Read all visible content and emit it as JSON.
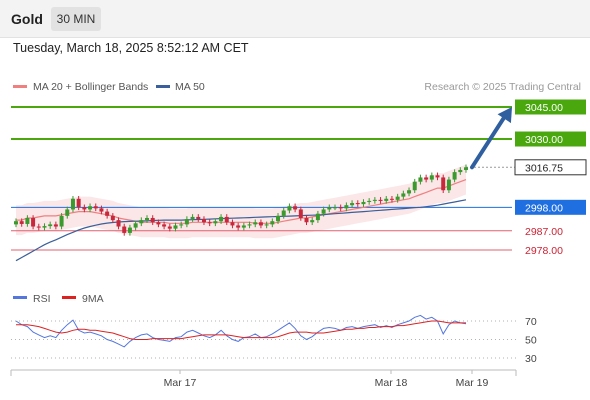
{
  "header": {
    "symbol": "Gold",
    "timeframe": "30 MIN",
    "datetime": "Tuesday, March 18, 2025 8:52:12 AM CET"
  },
  "legend": {
    "ma20": "MA 20 + Bollinger Bands",
    "ma50": "MA 50",
    "copyright": "Research © 2025 Trading Central"
  },
  "colors": {
    "candle_up": "#3a9a2e",
    "candle_down": "#c8283c",
    "ma20": "#f08080",
    "ma50": "#3a5f9a",
    "bollinger_fill": "#fbe3e6",
    "resistance": "#4aa80e",
    "support": "#e06070",
    "pivot": "#1f6fe0",
    "current": "#333333",
    "rsi": "#5577dd",
    "rsi_ma": "#dd2222"
  },
  "rsi_legend": {
    "rsi": "RSI",
    "ma": "9MA"
  },
  "chart_data": {
    "type": "candlestick",
    "x_tick_labels": [
      "Mar 17",
      "Mar 18",
      "Mar 19"
    ],
    "price_levels": [
      {
        "label": "3045.00",
        "value": 3045.0,
        "kind": "resistance"
      },
      {
        "label": "3030.00",
        "value": 3030.0,
        "kind": "resistance"
      },
      {
        "label": "3016.75",
        "value": 3016.75,
        "kind": "current"
      },
      {
        "label": "2998.00",
        "value": 2998.0,
        "kind": "pivot"
      },
      {
        "label": "2987.00",
        "value": 2987.0,
        "kind": "support"
      },
      {
        "label": "2978.00",
        "value": 2978.0,
        "kind": "support"
      }
    ],
    "target_arrow": {
      "from": 3016.75,
      "to": 3045.0
    },
    "rsi_levels": [
      70,
      50,
      30
    ],
    "candles_close": [
      2991.5,
      2990.2,
      2993.0,
      2989.0,
      2988.5,
      2989.2,
      2990.0,
      2989.0,
      2994.0,
      2997.0,
      3002.0,
      2998.0,
      2997.0,
      2998.5,
      2997.5,
      2996.0,
      2994.0,
      2992.0,
      2989.0,
      2986.0,
      2988.5,
      2990.5,
      2992.0,
      2993.0,
      2991.0,
      2990.0,
      2989.0,
      2988.0,
      2989.5,
      2990.0,
      2992.5,
      2993.5,
      2992.5,
      2991.0,
      2990.5,
      2991.5,
      2993.5,
      2991.0,
      2989.5,
      2988.5,
      2989.5,
      2990.0,
      2991.0,
      2989.5,
      2990.0,
      2991.5,
      2994.0,
      2996.5,
      2998.5,
      2997.0,
      2993.0,
      2991.0,
      2992.0,
      2995.0,
      2997.0,
      2998.0,
      2998.0,
      2997.5,
      2999.0,
      3000.0,
      2999.5,
      3000.5,
      3001.0,
      3001.5,
      3001.0,
      3002.0,
      3001.5,
      3003.0,
      3004.5,
      3006.0,
      3010.0,
      3012.0,
      3011.0,
      3013.0,
      3012.0,
      3006.0,
      3011.0,
      3014.5,
      3015.5,
      3016.75
    ],
    "ma20": [
      2992,
      2992,
      2993,
      2993,
      2993.5,
      2994,
      2994,
      2994,
      2994.5,
      2995,
      2995.5,
      2996,
      2996,
      2996,
      2995.5,
      2995,
      2994.5,
      2994,
      2993,
      2992.5,
      2992,
      2991.5,
      2991,
      2991,
      2991,
      2991,
      2991,
      2990.5,
      2990.5,
      2990.5,
      2990.5,
      2991,
      2991,
      2991,
      2991,
      2991,
      2991,
      2991,
      2991,
      2991,
      2991,
      2991,
      2990.5,
      2990.5,
      2990.5,
      2990.5,
      2991,
      2991.5,
      2992,
      2992.5,
      2993,
      2993,
      2993.5,
      2994,
      2994.5,
      2995,
      2995.5,
      2996,
      2996.5,
      2997,
      2997.5,
      2998,
      2998.5,
      2999,
      2999.5,
      3000,
      3000.5,
      3001,
      3001.5,
      3002,
      3003,
      3004,
      3005,
      3006,
      3007,
      3007,
      3008,
      3009,
      3010,
      3011
    ],
    "ma50": [
      2973.0,
      2974.5,
      2976.0,
      2977.5,
      2979.0,
      2980.5,
      2981.7,
      2982.8,
      2984.0,
      2985.2,
      2986.3,
      2987.4,
      2988.3,
      2989.0,
      2989.6,
      2990.2,
      2990.6,
      2990.9,
      2991.1,
      2991.3,
      2991.4,
      2991.5,
      2991.6,
      2991.7,
      2991.8,
      2991.9,
      2992.0,
      2992.0,
      2992.0,
      2992.0,
      2992.1,
      2992.2,
      2992.3,
      2992.4,
      2992.5,
      2992.6,
      2992.7,
      2992.8,
      2992.9,
      2993.0,
      2993.1,
      2993.2,
      2993.3,
      2993.4,
      2993.5,
      2993.6,
      2993.7,
      2993.8,
      2993.9,
      2994.0,
      2994.1,
      2994.2,
      2994.3,
      2994.4,
      2994.6,
      2994.8,
      2995.0,
      2995.2,
      2995.4,
      2995.6,
      2995.8,
      2996.0,
      2996.2,
      2996.4,
      2996.6,
      2996.8,
      2997.0,
      2997.2,
      2997.4,
      2997.6,
      2997.8,
      2998.0,
      2998.3,
      2998.6,
      2999.0,
      2999.5,
      3000.0,
      3000.5,
      3001.0,
      3001.5
    ],
    "rsi": [
      70,
      66,
      64,
      58,
      55,
      52,
      54,
      52,
      60,
      66,
      71,
      60,
      57,
      58,
      56,
      54,
      50,
      48,
      45,
      42,
      48,
      52,
      55,
      56,
      52,
      50,
      49,
      48,
      52,
      53,
      58,
      60,
      57,
      54,
      52,
      55,
      60,
      54,
      50,
      48,
      52,
      53,
      56,
      52,
      53,
      56,
      60,
      64,
      68,
      62,
      54,
      50,
      53,
      58,
      62,
      63,
      62,
      60,
      63,
      64,
      62,
      64,
      65,
      66,
      63,
      65,
      63,
      66,
      68,
      70,
      74,
      76,
      72,
      74,
      70,
      56,
      66,
      70,
      68,
      67
    ],
    "rsi_ma": [
      66,
      66,
      66,
      65,
      64,
      62,
      60,
      58,
      57,
      58,
      60,
      61,
      61,
      60,
      60,
      59,
      58,
      57,
      55,
      53,
      51,
      50,
      50,
      50,
      51,
      51,
      51,
      51,
      51,
      51,
      52,
      53,
      54,
      55,
      55,
      55,
      55,
      55,
      54,
      53,
      52,
      52,
      52,
      52,
      52,
      52,
      53,
      55,
      57,
      58,
      58,
      58,
      57,
      57,
      57,
      58,
      59,
      60,
      61,
      61,
      62,
      62,
      63,
      63,
      64,
      64,
      64,
      65,
      65,
      66,
      67,
      68,
      69,
      70,
      70,
      69,
      68,
      68,
      68,
      68
    ]
  }
}
